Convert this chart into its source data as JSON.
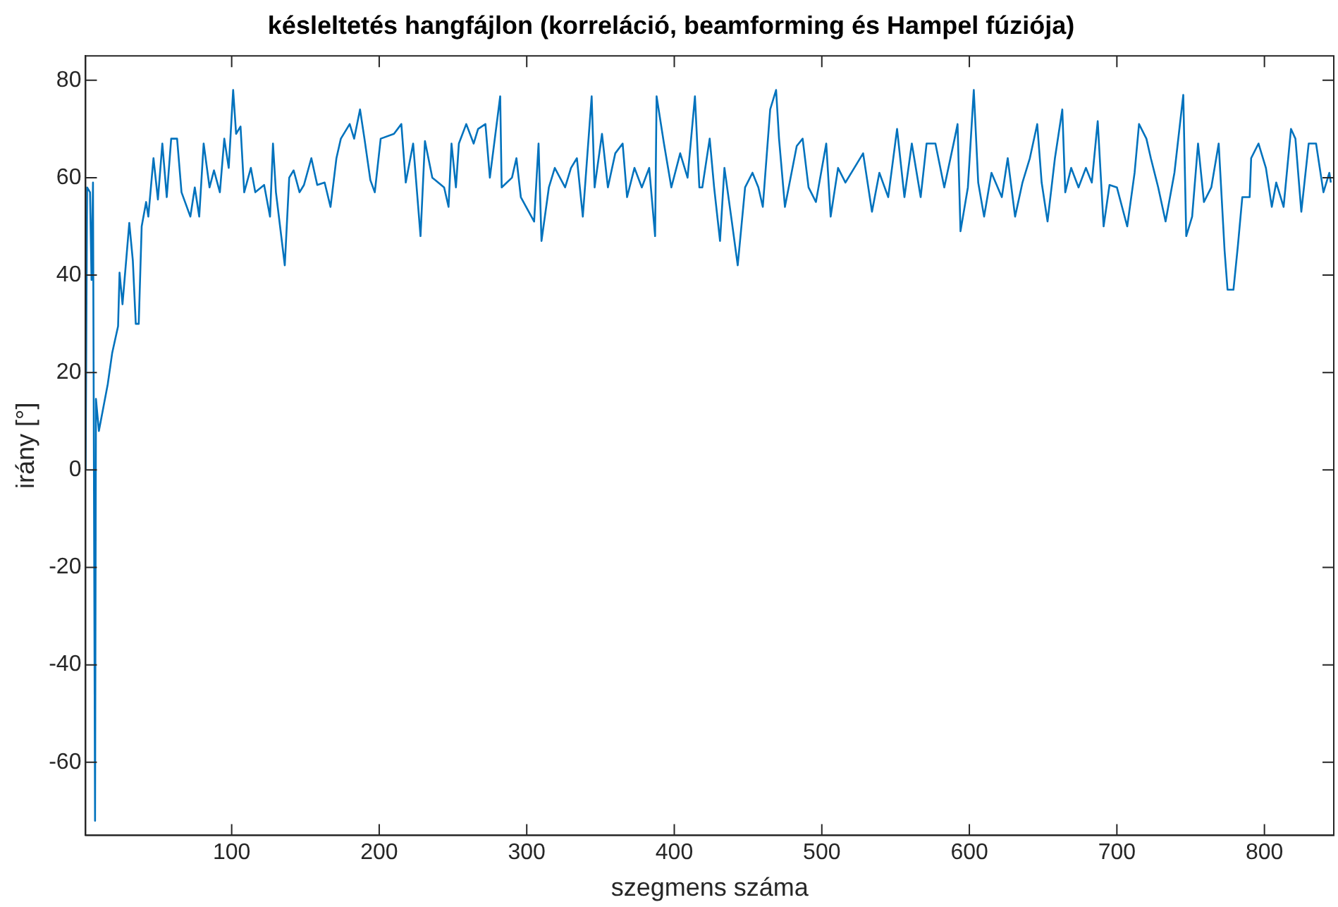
{
  "chart_data": {
    "type": "line",
    "title": "késleltetés hangfájlon (korreláció, beamforming és Hampel fúziója)",
    "xlabel": "szegmens száma",
    "ylabel": "irány [°]",
    "xlim": [
      1,
      847
    ],
    "ylim": [
      -75,
      85
    ],
    "xticks": [
      100,
      200,
      300,
      400,
      500,
      600,
      700,
      800
    ],
    "yticks": [
      -60,
      -40,
      -20,
      0,
      20,
      40,
      60,
      80
    ],
    "grid": false,
    "legend": false,
    "marker": "none",
    "line_style": "solid",
    "series": [
      {
        "color": "#0072bd",
        "x": [
          1,
          2,
          4,
          5,
          6,
          7.4,
          8,
          10,
          16,
          19,
          23,
          24,
          26,
          30.6,
          33,
          35,
          37,
          39,
          42,
          43.5,
          47,
          50,
          53,
          56,
          59,
          63,
          66,
          72,
          75,
          78,
          81,
          85,
          88,
          92,
          95,
          98,
          101,
          103,
          106,
          108.5,
          113,
          116,
          122,
          126,
          128,
          130,
          136,
          139,
          142,
          146,
          149,
          154,
          158,
          163,
          167,
          171,
          174,
          180,
          183,
          187,
          190,
          194,
          197,
          201,
          210,
          215,
          218,
          223,
          228,
          231,
          236,
          244,
          247,
          249,
          252,
          254,
          259,
          264,
          267,
          272,
          275,
          282,
          283,
          290,
          293,
          296,
          305,
          308,
          310,
          315,
          319,
          326,
          330,
          334,
          338,
          344,
          346,
          351,
          355,
          360,
          365,
          368,
          373,
          378,
          383,
          387,
          388,
          393,
          398,
          404,
          409,
          414,
          417,
          419,
          424,
          427,
          431,
          434,
          439,
          443,
          448,
          453,
          457,
          460,
          465,
          469,
          471,
          475,
          483,
          487,
          491,
          496,
          503,
          506,
          511,
          516,
          522,
          528,
          534,
          539,
          545,
          551,
          556,
          561,
          567,
          571,
          577,
          583,
          590,
          592,
          594,
          599,
          603,
          606,
          610,
          615,
          622,
          626,
          631,
          636,
          641,
          646,
          649,
          653,
          658,
          663,
          665,
          669,
          674,
          679,
          683,
          687,
          691,
          695,
          700,
          707,
          712,
          715,
          720,
          723,
          728,
          733,
          739,
          745,
          747,
          751,
          755,
          759,
          764,
          769,
          773,
          775,
          779,
          782,
          785,
          790,
          791,
          796,
          801,
          805,
          808,
          813,
          818,
          821,
          825,
          830,
          835,
          840,
          844,
          845
        ],
        "values": [
          0,
          58,
          57,
          39,
          59,
          -72,
          14.6,
          8,
          17.6,
          24,
          29.5,
          40.5,
          34,
          50.7,
          43,
          30,
          30,
          50,
          55,
          52,
          64,
          55.5,
          67,
          56,
          68,
          68,
          57,
          52,
          58,
          52,
          67,
          58,
          61.5,
          57,
          68,
          62,
          78,
          69,
          70.5,
          57,
          62,
          57,
          58.5,
          52,
          67,
          57,
          42,
          60,
          61.5,
          57,
          58.5,
          64,
          58.5,
          59,
          54,
          64,
          68,
          71,
          68,
          74,
          68,
          59.5,
          57,
          68,
          69,
          71,
          59,
          67,
          48,
          67.5,
          60,
          58,
          54,
          67,
          58,
          67,
          71,
          67,
          70,
          71,
          60,
          76.7,
          58,
          60,
          64,
          56,
          51,
          67,
          47,
          58,
          62,
          58,
          62,
          64,
          52,
          76.7,
          58,
          69,
          58,
          65,
          67,
          56,
          62,
          58,
          62,
          48,
          76.7,
          67,
          58,
          65,
          60,
          76.7,
          58,
          58,
          68,
          58,
          47,
          62,
          51,
          42,
          58,
          61,
          58,
          54,
          74,
          78,
          68,
          54,
          66.5,
          68,
          58,
          55,
          67,
          52,
          62,
          59,
          62,
          65,
          53,
          61,
          56,
          70,
          56,
          67,
          56,
          67,
          67,
          58,
          68,
          71,
          49,
          58,
          78,
          59,
          52,
          61,
          56,
          64,
          52,
          59,
          64,
          71,
          59,
          51,
          64,
          74,
          57,
          62,
          58,
          62,
          59,
          71.6,
          50,
          58.5,
          58,
          50,
          61,
          71,
          68,
          64,
          58,
          51,
          61,
          77,
          48,
          52,
          67,
          55,
          58,
          67,
          45,
          37,
          37,
          46,
          56,
          56,
          64,
          67,
          62,
          54,
          59,
          54,
          70,
          68,
          53,
          67,
          67,
          57,
          61,
          59
        ]
      }
    ]
  }
}
